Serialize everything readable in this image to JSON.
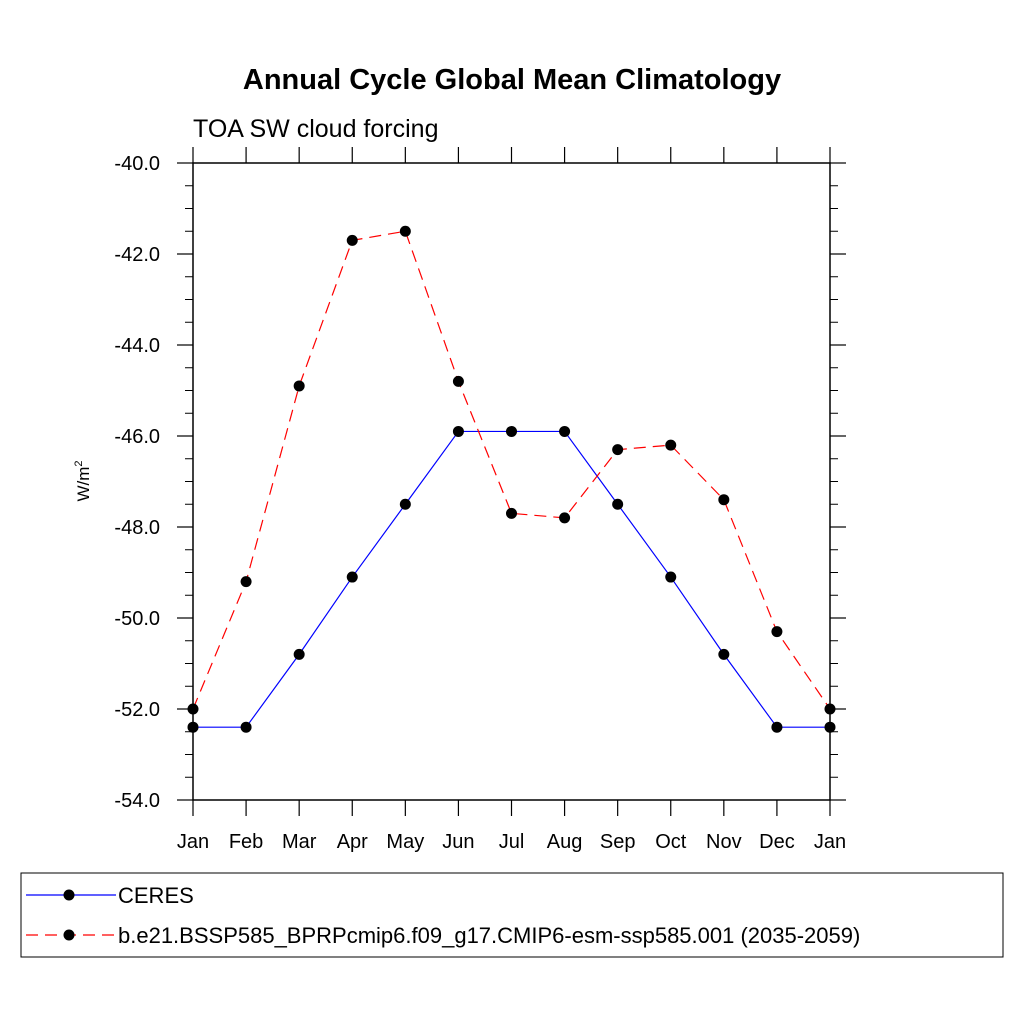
{
  "chart_data": {
    "type": "line",
    "title": "Annual Cycle Global Mean Climatology",
    "subtitle": "TOA SW cloud forcing",
    "ylabel": "W/m",
    "ylabel_superscript": "2",
    "xlabel": "",
    "categories": [
      "Jan",
      "Feb",
      "Mar",
      "Apr",
      "May",
      "Jun",
      "Jul",
      "Aug",
      "Sep",
      "Oct",
      "Nov",
      "Dec",
      "Jan"
    ],
    "ylim": [
      -54.0,
      -40.0
    ],
    "yticks": [
      "-40.0",
      "-42.0",
      "-44.0",
      "-46.0",
      "-48.0",
      "-50.0",
      "-52.0",
      "-54.0"
    ],
    "grid": false,
    "legend_position": "bottom",
    "series": [
      {
        "name": "CERES",
        "color": "#0000ff",
        "dash": "solid",
        "marker": "filled-circle",
        "values": [
          -52.4,
          -52.4,
          -50.8,
          -49.1,
          -47.5,
          -45.9,
          -45.9,
          -45.9,
          -47.5,
          -49.1,
          -50.8,
          -52.4,
          -52.4
        ]
      },
      {
        "name": "b.e21.BSSP585_BPRPcmip6.f09_g17.CMIP6-esm-ssp585.001 (2035-2059)",
        "color": "#ff0000",
        "dash": "dashed",
        "marker": "filled-circle",
        "values": [
          -52.0,
          -49.2,
          -44.9,
          -41.7,
          -41.5,
          -44.8,
          -47.7,
          -47.8,
          -46.3,
          -46.2,
          -47.4,
          -50.3,
          -52.0
        ]
      }
    ]
  }
}
